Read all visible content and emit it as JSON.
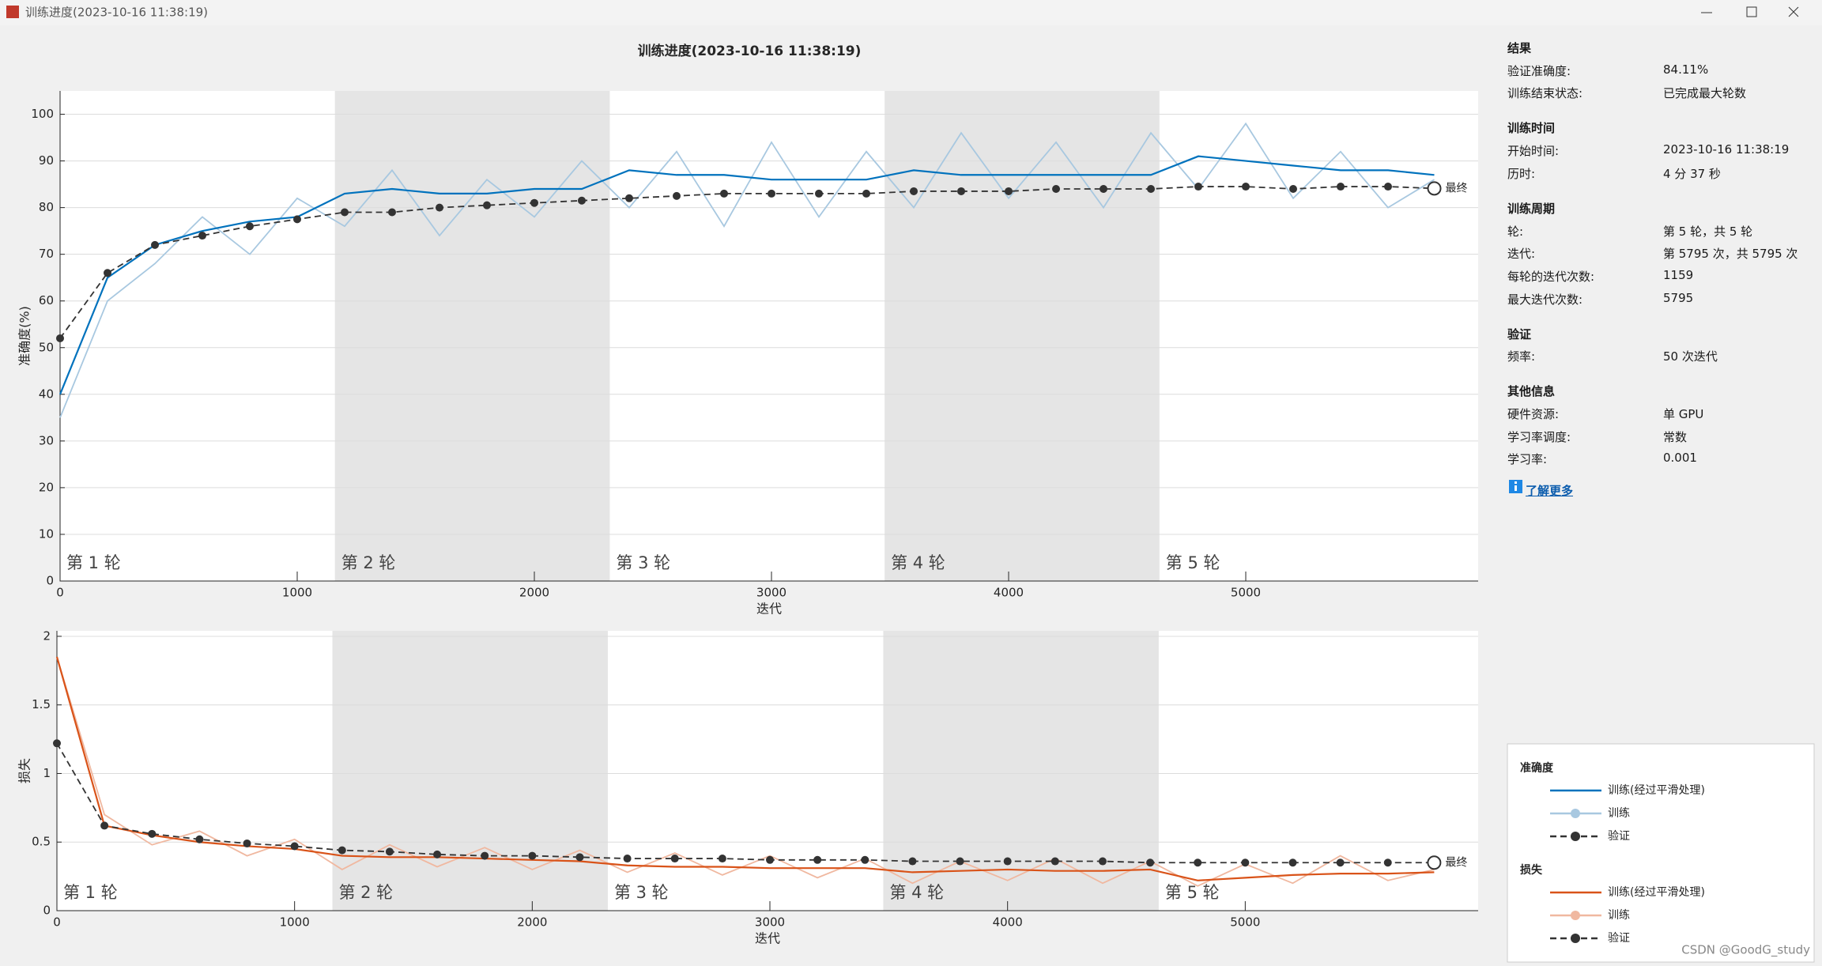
{
  "window_title": "训练进度(2023-10-16 11:38:19)",
  "title": "训练进度(2023-10-16 11:38:19)",
  "chart_data": [
    {
      "type": "line",
      "ylabel": "准确度(%)",
      "xlabel": "迭代",
      "xlim": [
        0,
        5980
      ],
      "ylim": [
        0,
        105
      ],
      "xticks": [
        0,
        1000,
        2000,
        3000,
        4000,
        5000
      ],
      "yticks": [
        0,
        10,
        20,
        30,
        40,
        50,
        60,
        70,
        80,
        90,
        100
      ],
      "grid": true,
      "epoch_shade_color": "#e5e5e5",
      "epochs": [
        {
          "label": "第 1 轮",
          "start": 0,
          "end": 1159
        },
        {
          "label": "第 2 轮",
          "start": 1159,
          "end": 2318
        },
        {
          "label": "第 3 轮",
          "start": 2318,
          "end": 3477
        },
        {
          "label": "第 4 轮",
          "start": 3477,
          "end": 4636
        },
        {
          "label": "第 5 轮",
          "start": 4636,
          "end": 5795
        }
      ],
      "final_label": "最终",
      "x": [
        0,
        200,
        400,
        600,
        800,
        1000,
        1200,
        1400,
        1600,
        1800,
        2000,
        2200,
        2400,
        2600,
        2800,
        3000,
        3200,
        3400,
        3600,
        3800,
        4000,
        4200,
        4400,
        4600,
        4800,
        5000,
        5200,
        5400,
        5600,
        5795
      ],
      "series": [
        {
          "name": "训练",
          "color": "#a8c8e0",
          "values": [
            35,
            60,
            68,
            78,
            70,
            82,
            76,
            88,
            74,
            86,
            78,
            90,
            80,
            92,
            76,
            94,
            78,
            92,
            80,
            96,
            82,
            94,
            80,
            96,
            84,
            98,
            82,
            92,
            80,
            86
          ]
        },
        {
          "name": "训练(经过平滑处理)",
          "color": "#0072bd",
          "values": [
            40,
            65,
            72,
            75,
            77,
            78,
            83,
            84,
            83,
            83,
            84,
            84,
            88,
            87,
            87,
            86,
            86,
            86,
            88,
            87,
            87,
            87,
            87,
            87,
            91,
            90,
            89,
            88,
            88,
            87
          ]
        },
        {
          "name": "验证",
          "color": "#333333",
          "line_style": "dashed",
          "marker": "circle",
          "values": [
            52,
            66,
            72,
            74,
            76,
            77.5,
            79,
            79,
            80,
            80.5,
            81,
            81.5,
            82,
            82.5,
            83,
            83,
            83,
            83,
            83.5,
            83.5,
            83.5,
            84,
            84,
            84,
            84.5,
            84.5,
            84,
            84.5,
            84.5,
            84.11
          ]
        }
      ]
    },
    {
      "type": "line",
      "ylabel": "损失",
      "xlabel": "迭代",
      "xlim": [
        0,
        5980
      ],
      "ylim": [
        0,
        2.04
      ],
      "xticks": [
        0,
        1000,
        2000,
        3000,
        4000,
        5000
      ],
      "yticks": [
        0,
        0.5,
        1,
        1.5,
        2
      ],
      "grid": true,
      "epoch_shade_color": "#e5e5e5",
      "epochs": [
        {
          "label": "第 1 轮",
          "start": 0,
          "end": 1159
        },
        {
          "label": "第 2 轮",
          "start": 1159,
          "end": 2318
        },
        {
          "label": "第 3 轮",
          "start": 2318,
          "end": 3477
        },
        {
          "label": "第 4 轮",
          "start": 3477,
          "end": 4636
        },
        {
          "label": "第 5 轮",
          "start": 4636,
          "end": 5795
        }
      ],
      "final_label": "最终",
      "x": [
        0,
        200,
        400,
        600,
        800,
        1000,
        1200,
        1400,
        1600,
        1800,
        2000,
        2200,
        2400,
        2600,
        2800,
        3000,
        3200,
        3400,
        3600,
        3800,
        4000,
        4200,
        4400,
        4600,
        4800,
        5000,
        5200,
        5400,
        5600,
        5795
      ],
      "series": [
        {
          "name": "训练",
          "color": "#f0b8a0",
          "values": [
            1.85,
            0.7,
            0.48,
            0.58,
            0.4,
            0.52,
            0.3,
            0.48,
            0.32,
            0.46,
            0.3,
            0.44,
            0.28,
            0.42,
            0.26,
            0.4,
            0.24,
            0.38,
            0.2,
            0.36,
            0.22,
            0.38,
            0.2,
            0.36,
            0.18,
            0.34,
            0.2,
            0.4,
            0.22,
            0.3
          ]
        },
        {
          "name": "训练(经过平滑处理)",
          "color": "#d95319",
          "values": [
            1.85,
            0.62,
            0.55,
            0.5,
            0.47,
            0.45,
            0.4,
            0.39,
            0.39,
            0.38,
            0.37,
            0.36,
            0.33,
            0.32,
            0.32,
            0.31,
            0.31,
            0.31,
            0.28,
            0.29,
            0.3,
            0.29,
            0.29,
            0.3,
            0.22,
            0.24,
            0.26,
            0.27,
            0.27,
            0.28
          ]
        },
        {
          "name": "验证",
          "color": "#333333",
          "line_style": "dashed",
          "marker": "circle",
          "values": [
            1.22,
            0.62,
            0.56,
            0.52,
            0.49,
            0.47,
            0.44,
            0.43,
            0.41,
            0.4,
            0.4,
            0.39,
            0.38,
            0.38,
            0.38,
            0.37,
            0.37,
            0.37,
            0.36,
            0.36,
            0.36,
            0.36,
            0.36,
            0.35,
            0.35,
            0.35,
            0.35,
            0.35,
            0.35,
            0.35
          ]
        }
      ]
    }
  ],
  "info": {
    "sections": [
      {
        "title": "结果",
        "rows": [
          [
            "验证准确度:",
            "84.11%"
          ],
          [
            "训练结束状态:",
            "已完成最大轮数"
          ]
        ]
      },
      {
        "title": "训练时间",
        "rows": [
          [
            "开始时间:",
            "2023-10-16 11:38:19"
          ],
          [
            "历时:",
            "4 分 37 秒"
          ]
        ]
      },
      {
        "title": "训练周期",
        "rows": [
          [
            "轮:",
            "第 5 轮，共 5 轮"
          ],
          [
            "迭代:",
            "第 5795 次，共 5795 次"
          ],
          [
            "每轮的迭代次数:",
            "1159"
          ],
          [
            "最大迭代次数:",
            "5795"
          ]
        ]
      },
      {
        "title": "验证",
        "rows": [
          [
            "频率:",
            "50 次迭代"
          ]
        ]
      },
      {
        "title": "其他信息",
        "rows": [
          [
            "硬件资源:",
            "单 GPU"
          ],
          [
            "学习率调度:",
            "常数"
          ],
          [
            "学习率:",
            "0.001"
          ]
        ]
      }
    ],
    "link": "了解更多"
  },
  "legend": {
    "titles": [
      "准确度",
      "损失"
    ]
  },
  "watermark": "CSDN @GoodG_study"
}
